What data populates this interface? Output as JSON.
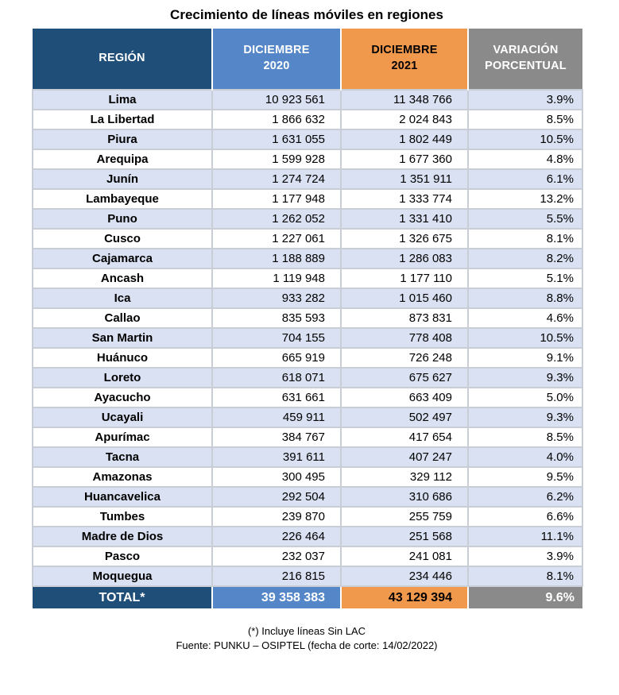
{
  "title": "Crecimiento de líneas móviles en regiones",
  "chart_data": {
    "type": "table",
    "title": "Crecimiento de líneas móviles en regiones",
    "columns": [
      "REGIÓN",
      "DICIEMBRE\n2020",
      "DICIEMBRE\n2021",
      "VARIACIÓN\nPORCENTUAL"
    ],
    "rows": [
      [
        "Lima",
        "10 923 561",
        "11 348 766",
        "3.9%"
      ],
      [
        "La Libertad",
        "1 866 632",
        "2 024 843",
        "8.5%"
      ],
      [
        "Piura",
        "1 631 055",
        "1 802 449",
        "10.5%"
      ],
      [
        "Arequipa",
        "1 599 928",
        "1 677 360",
        "4.8%"
      ],
      [
        "Junín",
        "1 274 724",
        "1 351 911",
        "6.1%"
      ],
      [
        "Lambayeque",
        "1 177 948",
        "1 333 774",
        "13.2%"
      ],
      [
        "Puno",
        "1 262 052",
        "1 331 410",
        "5.5%"
      ],
      [
        "Cusco",
        "1 227 061",
        "1 326 675",
        "8.1%"
      ],
      [
        "Cajamarca",
        "1 188 889",
        "1 286 083",
        "8.2%"
      ],
      [
        "Ancash",
        "1 119 948",
        "1 177 110",
        "5.1%"
      ],
      [
        "Ica",
        "933 282",
        "1 015 460",
        "8.8%"
      ],
      [
        "Callao",
        "835 593",
        "873 831",
        "4.6%"
      ],
      [
        "San Martin",
        "704 155",
        "778 408",
        "10.5%"
      ],
      [
        "Huánuco",
        "665 919",
        "726 248",
        "9.1%"
      ],
      [
        "Loreto",
        "618 071",
        "675 627",
        "9.3%"
      ],
      [
        "Ayacucho",
        "631 661",
        "663 409",
        "5.0%"
      ],
      [
        "Ucayali",
        "459 911",
        "502 497",
        "9.3%"
      ],
      [
        "Apurímac",
        "384 767",
        "417 654",
        "8.5%"
      ],
      [
        "Tacna",
        "391 611",
        "407 247",
        "4.0%"
      ],
      [
        "Amazonas",
        "300 495",
        "329 112",
        "9.5%"
      ],
      [
        "Huancavelica",
        "292 504",
        "310 686",
        "6.2%"
      ],
      [
        "Tumbes",
        "239 870",
        "255 759",
        "6.6%"
      ],
      [
        "Madre de Dios",
        "226 464",
        "251 568",
        "11.1%"
      ],
      [
        "Pasco",
        "232 037",
        "241 081",
        "3.9%"
      ],
      [
        "Moquegua",
        "216 815",
        "234 446",
        "8.1%"
      ]
    ],
    "total_row": [
      "TOTAL*",
      "39 358 383",
      "43 129 394",
      "9.6%"
    ]
  },
  "footnotes": {
    "line1": "(*) Incluye líneas Sin LAC",
    "line2": "Fuente: PUNKU – OSIPTEL (fecha de corte: 14/02/2022)"
  },
  "colors": {
    "navy": "#1F4E79",
    "blue": "#5587C8",
    "orange": "#F0994C",
    "gray": "#8A8A8A",
    "rowalt": "#D9E1F2",
    "grid": "#C9CDD6"
  }
}
